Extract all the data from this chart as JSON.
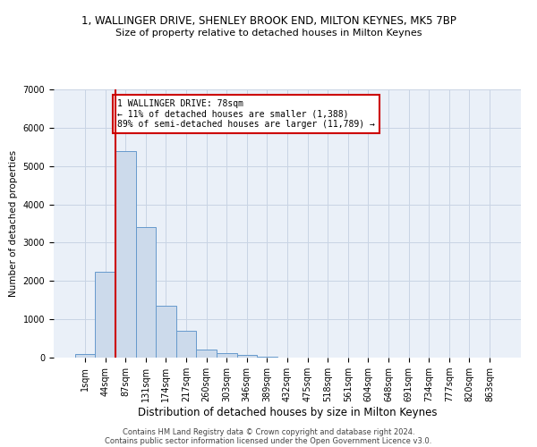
{
  "title": "1, WALLINGER DRIVE, SHENLEY BROOK END, MILTON KEYNES, MK5 7BP",
  "subtitle": "Size of property relative to detached houses in Milton Keynes",
  "xlabel": "Distribution of detached houses by size in Milton Keynes",
  "ylabel": "Number of detached properties",
  "categories": [
    "1sqm",
    "44sqm",
    "87sqm",
    "131sqm",
    "174sqm",
    "217sqm",
    "260sqm",
    "303sqm",
    "346sqm",
    "389sqm",
    "432sqm",
    "475sqm",
    "518sqm",
    "561sqm",
    "604sqm",
    "648sqm",
    "691sqm",
    "734sqm",
    "777sqm",
    "820sqm",
    "863sqm"
  ],
  "bar_heights": [
    100,
    2250,
    5400,
    3400,
    1350,
    700,
    200,
    120,
    70,
    20,
    5,
    2,
    1,
    0,
    0,
    0,
    0,
    0,
    0,
    0,
    0
  ],
  "bar_color": "#ccdaeb",
  "bar_edge_color": "#6699cc",
  "vline_x": 1.5,
  "vline_color": "#cc0000",
  "ylim": [
    0,
    7000
  ],
  "yticks": [
    0,
    1000,
    2000,
    3000,
    4000,
    5000,
    6000,
    7000
  ],
  "annotation_text": "1 WALLINGER DRIVE: 78sqm\n← 11% of detached houses are smaller (1,388)\n89% of semi-detached houses are larger (11,789) →",
  "annotation_box_color": "#ffffff",
  "annotation_box_edge": "#cc0000",
  "footer1": "Contains HM Land Registry data © Crown copyright and database right 2024.",
  "footer2": "Contains public sector information licensed under the Open Government Licence v3.0.",
  "bg_color": "#eaf0f8",
  "title_fontsize": 8.5,
  "subtitle_fontsize": 8.0,
  "xlabel_fontsize": 8.5,
  "ylabel_fontsize": 7.5,
  "tick_fontsize": 7.0,
  "annotation_fontsize": 7.0,
  "footer_fontsize": 6.0
}
